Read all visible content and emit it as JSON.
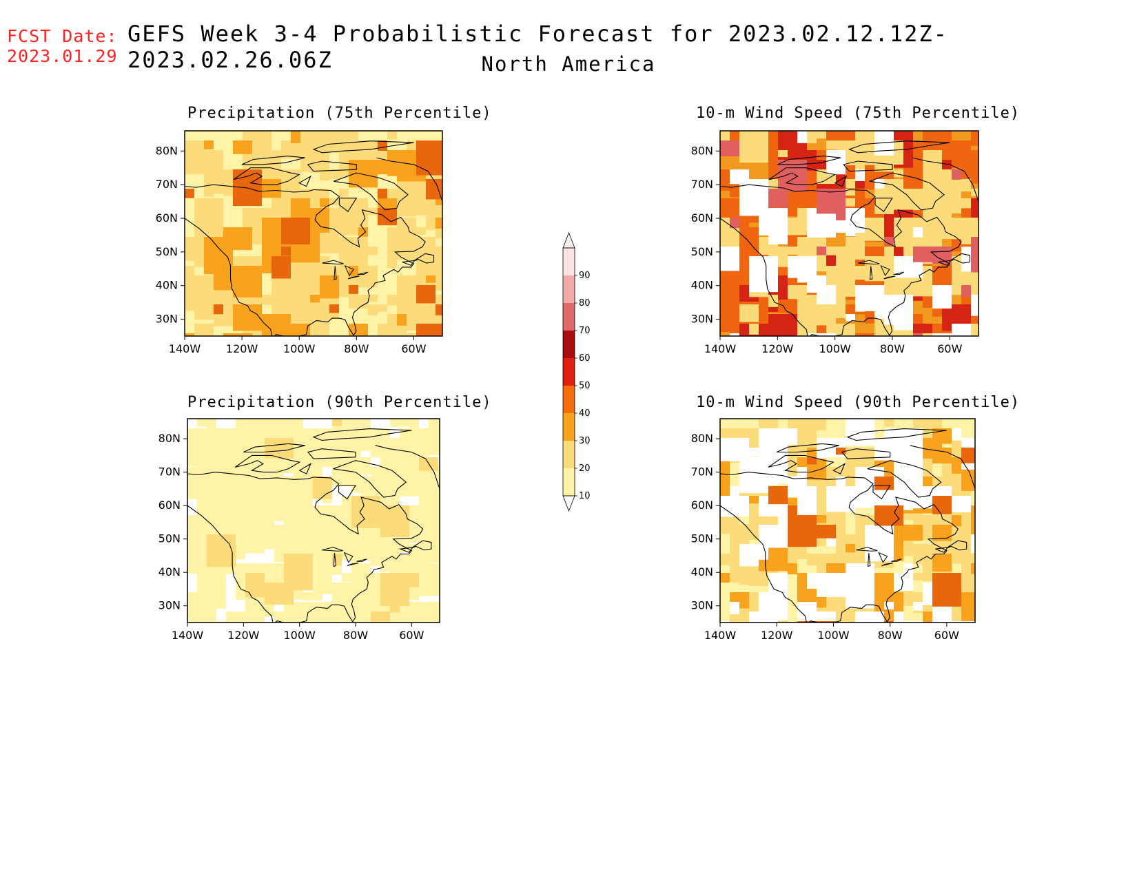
{
  "header": {
    "fcst_label": "FCST Date:",
    "fcst_date": "2023.01.29",
    "title": "GEFS Week 3-4 Probabilistic Forecast for 2023.02.12.12Z-2023.02.26.06Z",
    "subtitle": "North America"
  },
  "panels": [
    {
      "id": "precip75",
      "title": "Precipitation (75th Percentile)",
      "base": "#fef3a6",
      "blobs": [
        [
          "#fcdc7a",
          0.3
        ],
        [
          "#f9a21d",
          0.06
        ],
        [
          "#e8660c",
          0.02
        ]
      ]
    },
    {
      "id": "wind75",
      "title": "10-m Wind Speed (75th Percentile)",
      "base": "#f29a1f",
      "blobs": [
        [
          "#ef6510",
          0.28
        ],
        [
          "#d52414",
          0.08
        ],
        [
          "#fcdc7a",
          0.14
        ],
        [
          "#ffffff",
          0.04
        ],
        [
          "#e06060",
          0.02
        ]
      ]
    },
    {
      "id": "precip90",
      "title": "Precipitation (90th Percentile)",
      "base": "#ffffff",
      "blobs": [
        [
          "#fef3a6",
          0.4
        ],
        [
          "#fcdc7a",
          0.04
        ]
      ]
    },
    {
      "id": "wind90",
      "title": "10-m Wind Speed (90th Percentile)",
      "base": "#fef3a6",
      "blobs": [
        [
          "#fcdc7a",
          0.3
        ],
        [
          "#f9a21d",
          0.06
        ],
        [
          "#ffffff",
          0.12
        ],
        [
          "#e8660c",
          0.02
        ]
      ]
    }
  ],
  "axes": {
    "lon_labels": [
      "140W",
      "120W",
      "100W",
      "80W",
      "60W"
    ],
    "lat_labels": [
      "80N",
      "70N",
      "60N",
      "50N",
      "40N",
      "30N"
    ]
  },
  "colorbar": {
    "levels": [
      "10",
      "20",
      "30",
      "40",
      "50",
      "60",
      "70",
      "80",
      "90"
    ],
    "colors": [
      "#fef3a6",
      "#fcdc7a",
      "#f9a21d",
      "#f46f0c",
      "#e0200c",
      "#a80c0c",
      "#e06a6a",
      "#f4aaaa",
      "#fce4e4"
    ]
  }
}
